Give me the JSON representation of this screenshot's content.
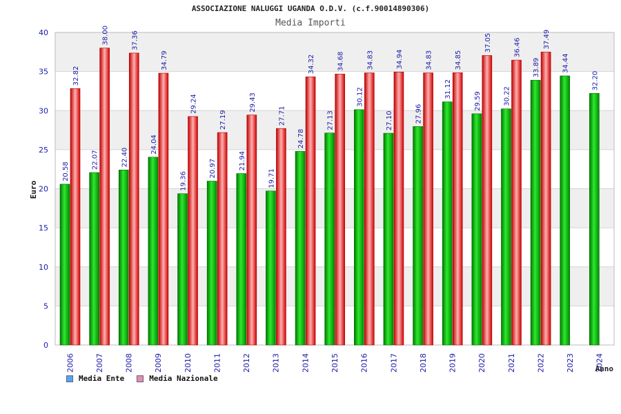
{
  "header": {
    "title": "ASSOCIAZIONE NALUGGI UGANDA O.D.V. (c.f.90014890306)",
    "subtitle": "Media Importi"
  },
  "legend": [
    {
      "label": "Media Ente",
      "color": "#4da6ff"
    },
    {
      "label": "Media Nazionale",
      "color": "#e68ab8"
    }
  ],
  "chart_data": {
    "type": "bar",
    "xlabel": "Anno",
    "ylabel": "Euro",
    "ylim": [
      0,
      40
    ],
    "yticks": [
      0,
      5,
      10,
      15,
      20,
      25,
      30,
      35,
      40
    ],
    "grid": true,
    "legend_position": "bottom-left",
    "categories": [
      "2006",
      "2007",
      "2008",
      "2009",
      "2010",
      "2011",
      "2012",
      "2013",
      "2014",
      "2015",
      "2016",
      "2017",
      "2018",
      "2019",
      "2020",
      "2021",
      "2022",
      "2023",
      "2024"
    ],
    "series": [
      {
        "name": "Media Ente",
        "color": "#00aa00",
        "values": [
          20.58,
          22.07,
          22.4,
          24.04,
          19.36,
          20.97,
          21.94,
          19.71,
          24.78,
          27.13,
          30.12,
          27.1,
          27.96,
          31.12,
          29.59,
          30.22,
          33.89,
          34.44,
          32.2
        ],
        "labels": [
          "20.58",
          "22.07",
          "22.40",
          "24.04",
          "19.36",
          "20.97",
          "21.94",
          "19.71",
          "24.78",
          "27.13",
          "30.12",
          "27.10",
          "27.96",
          "31.12",
          "29.59",
          "30.22",
          "33.89",
          "34.44",
          "32.20"
        ]
      },
      {
        "name": "Media Nazionale",
        "color": "#ee2222",
        "values": [
          32.82,
          38.0,
          37.36,
          34.79,
          29.24,
          27.19,
          29.43,
          27.71,
          34.32,
          34.68,
          34.83,
          34.94,
          34.83,
          34.85,
          37.05,
          36.46,
          37.49,
          null,
          null
        ],
        "labels": [
          "32.82",
          "38.00",
          "37.36",
          "34.79",
          "29.24",
          "27.19",
          "29.43",
          "27.71",
          "34.32",
          "34.68",
          "34.83",
          "34.94",
          "34.83",
          "34.85",
          "37.05",
          "36.46",
          "37.49",
          "",
          ""
        ]
      }
    ]
  }
}
